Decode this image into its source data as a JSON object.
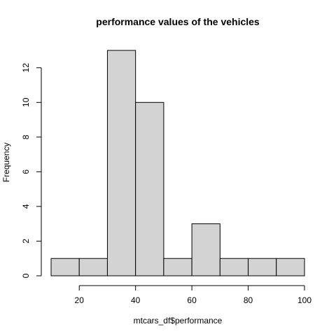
{
  "chart_data": {
    "type": "bar",
    "title": "performance values of the vehicles",
    "xlabel": "mtcars_df$performance",
    "ylabel": "Frequency",
    "bins": [
      {
        "start": 10,
        "end": 20,
        "count": 1
      },
      {
        "start": 20,
        "end": 30,
        "count": 1
      },
      {
        "start": 30,
        "end": 40,
        "count": 13
      },
      {
        "start": 40,
        "end": 50,
        "count": 10
      },
      {
        "start": 50,
        "end": 60,
        "count": 1
      },
      {
        "start": 60,
        "end": 70,
        "count": 3
      },
      {
        "start": 70,
        "end": 80,
        "count": 1
      },
      {
        "start": 80,
        "end": 90,
        "count": 1
      },
      {
        "start": 90,
        "end": 100,
        "count": 1
      }
    ],
    "xticks": [
      20,
      40,
      60,
      80,
      100
    ],
    "yticks": [
      0,
      2,
      4,
      6,
      8,
      10,
      12
    ],
    "xlim": [
      10,
      100
    ],
    "ylim": [
      0,
      13
    ],
    "bar_color": "#d3d3d3",
    "grid": false,
    "legend": "none"
  }
}
